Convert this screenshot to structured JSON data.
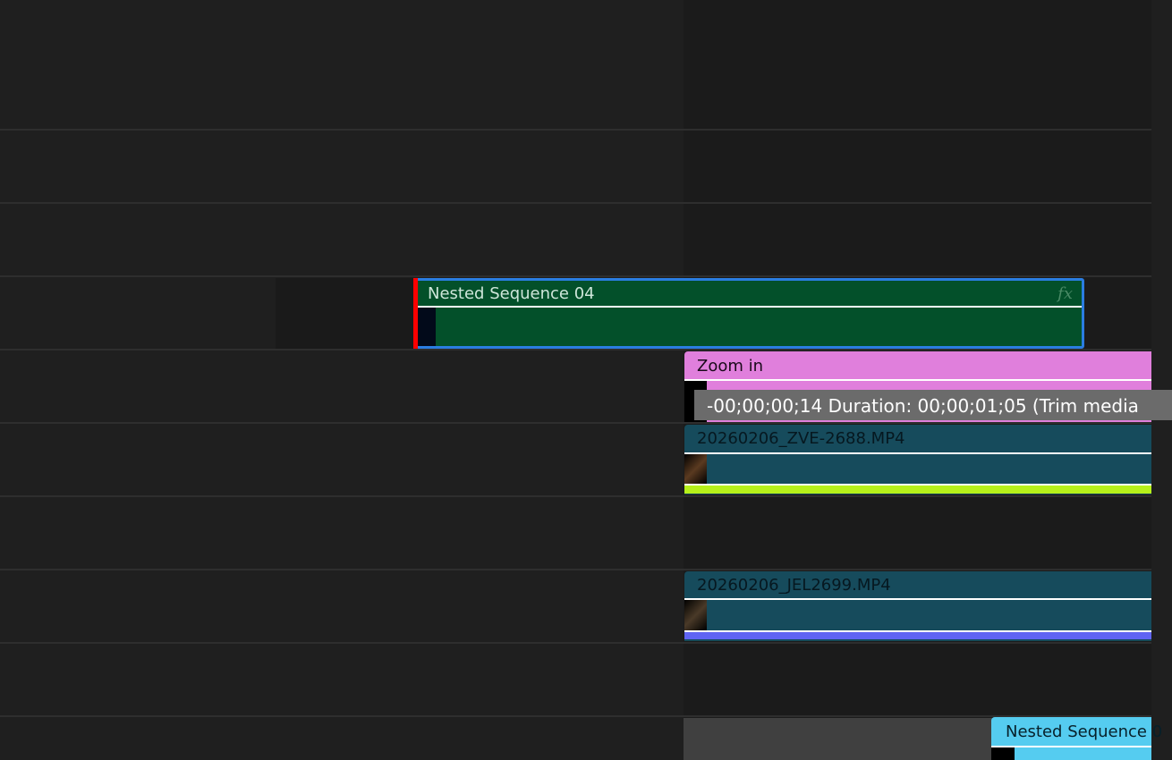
{
  "clips": {
    "nested04": {
      "label": "Nested Sequence 04",
      "fx": "fx",
      "color": "#03502a",
      "selected_border": "#2a7de1"
    },
    "zoom_in": {
      "label": "Zoom in",
      "color": "#e07fdc"
    },
    "trim_tooltip": "-00;00;00;14 Duration: 00;00;01;05 (Trim media",
    "clip_zve": {
      "label": "20260206_ZVE-2688.MP4",
      "color": "#164b5c",
      "bar_color": "#b6f01a"
    },
    "clip_jel": {
      "label": "20260206_JEL2699.MP4",
      "color": "#164b5c",
      "bar_color": "#5f64f3"
    },
    "nested_bottom": {
      "label": "Nested Sequence 0",
      "color": "#55ccf0"
    }
  }
}
